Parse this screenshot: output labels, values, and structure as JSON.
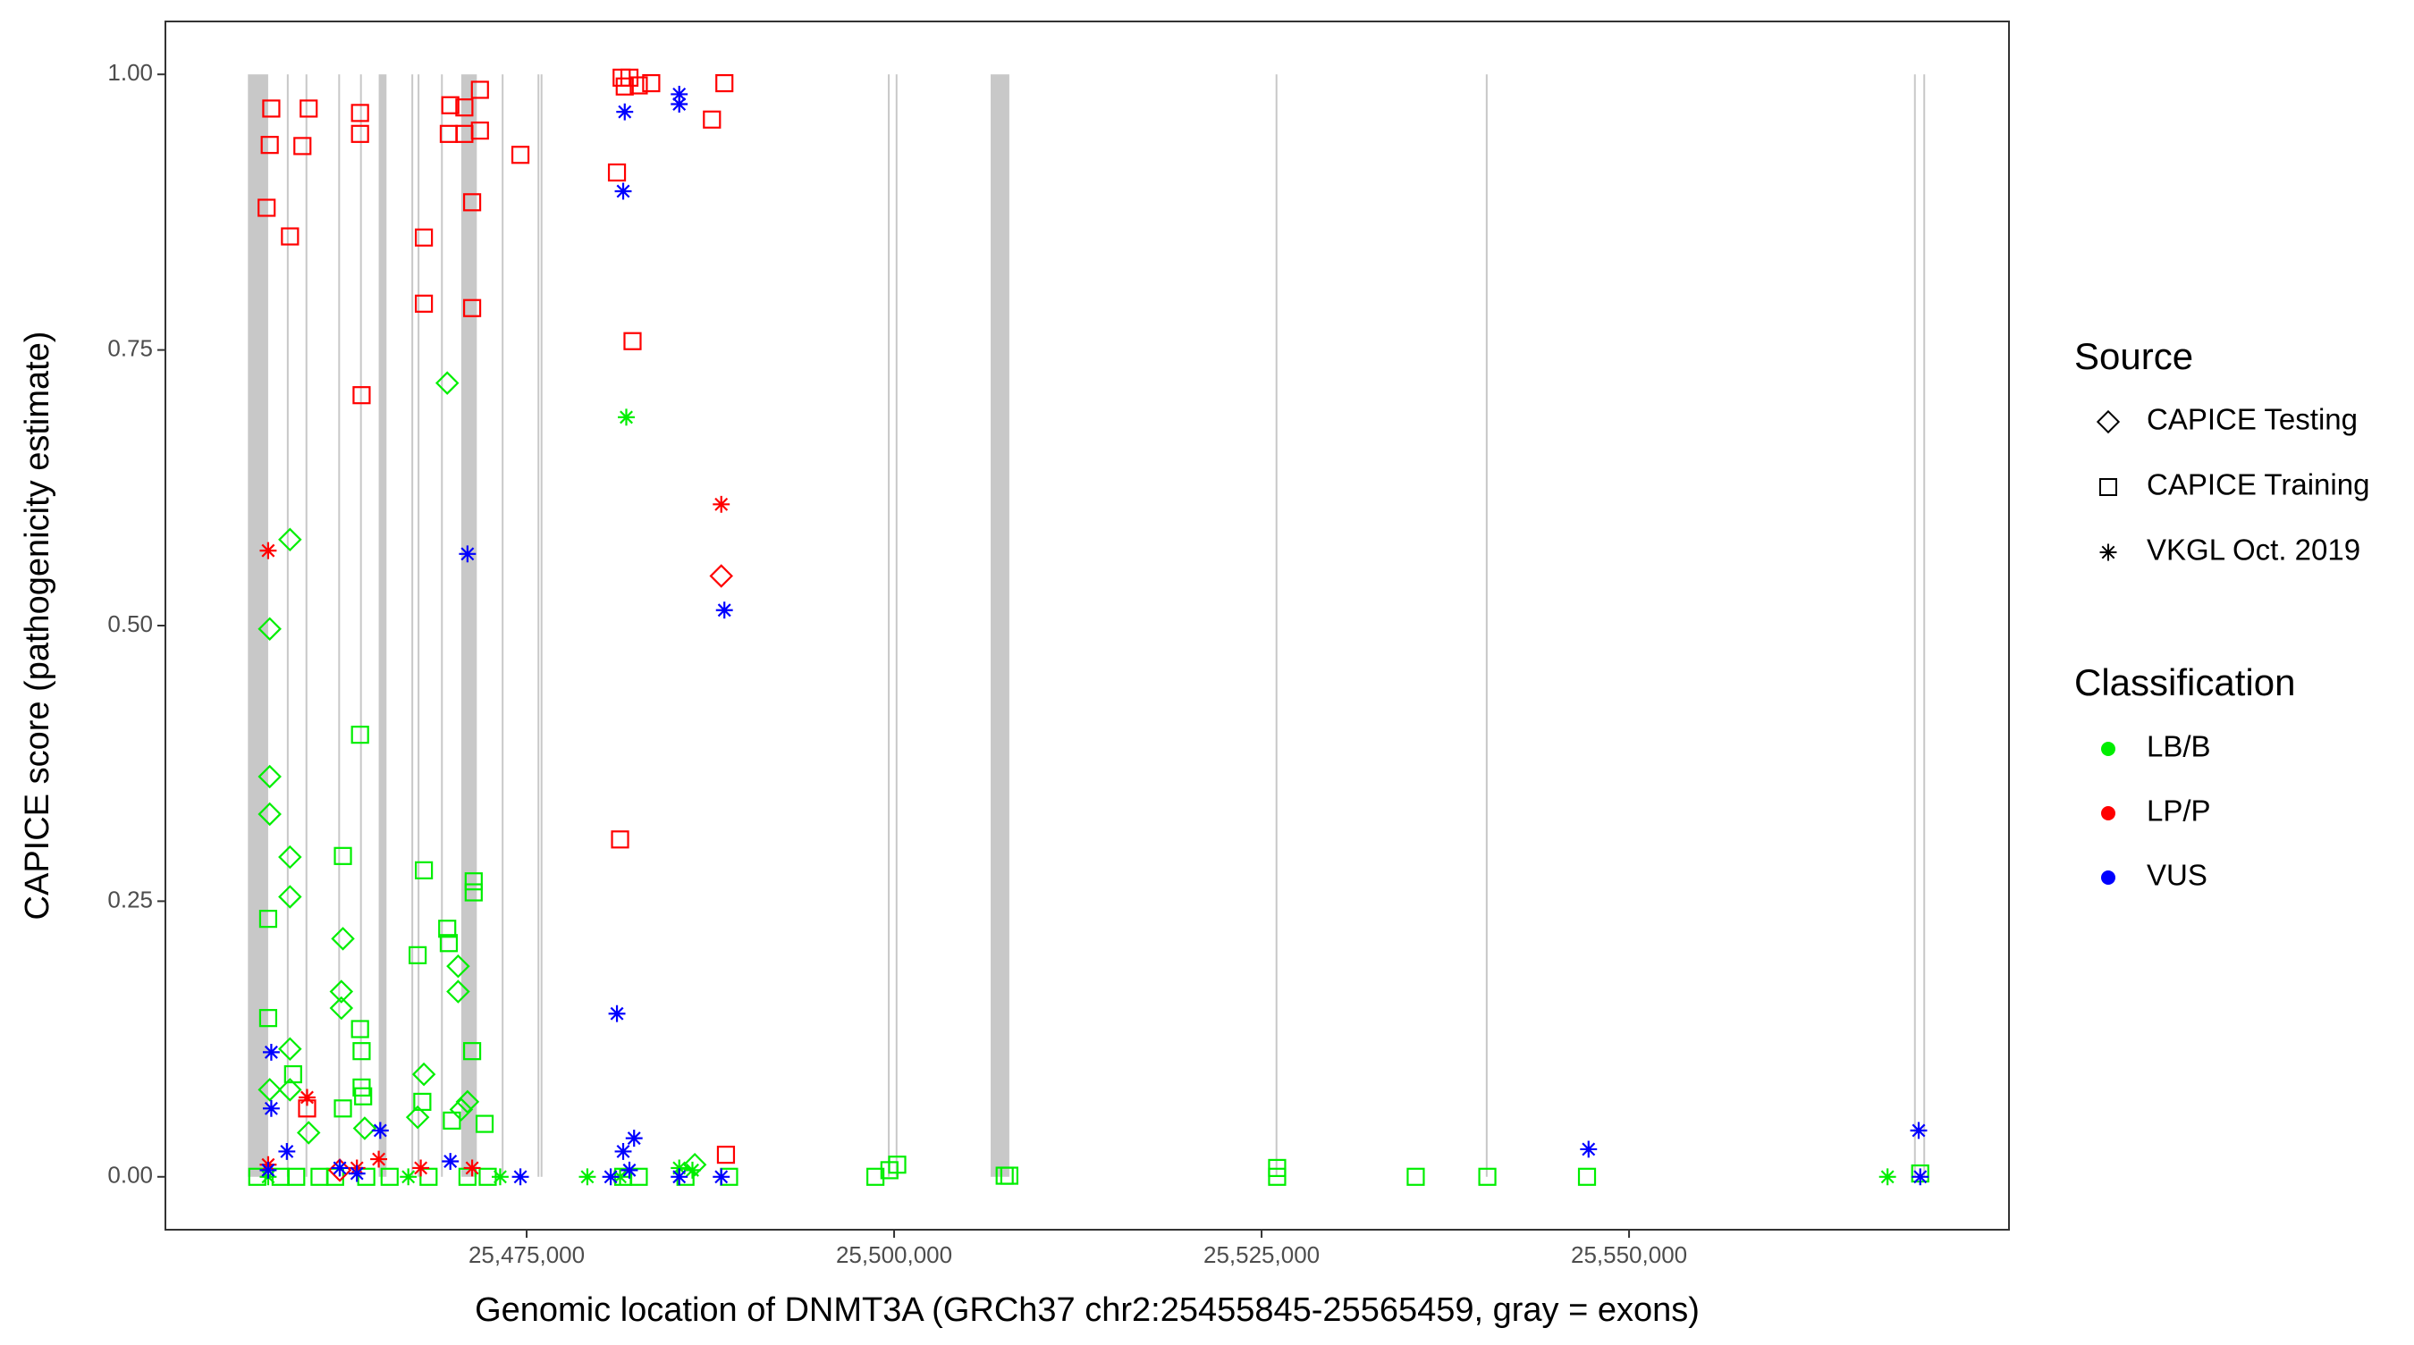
{
  "chart_data": {
    "type": "scatter",
    "x_label": "Genomic location of DNMT3A (GRCh37 chr2:25455845-25565459, gray = exons)",
    "y_label": "CAPICE score (pathogenicity estimate)",
    "xlim": [
      25450424,
      25575847
    ],
    "ylim": [
      -0.048,
      1.048
    ],
    "xticks": [
      {
        "value": 25475000,
        "label": "25,475,000"
      },
      {
        "value": 25500000,
        "label": "25,500,000"
      },
      {
        "value": 25525000,
        "label": "25,525,000"
      },
      {
        "value": 25550000,
        "label": "25,550,000"
      }
    ],
    "yticks": [
      {
        "value": 0,
        "label": "0.00"
      },
      {
        "value": 0.25,
        "label": "0.25"
      },
      {
        "value": 0.5,
        "label": "0.50"
      },
      {
        "value": 0.75,
        "label": "0.75"
      },
      {
        "value": 1,
        "label": "1.00"
      }
    ],
    "grid": false,
    "exon_color": "#c8c8c8",
    "exons": [
      [
        25456038,
        25457415
      ],
      [
        25458687,
        25458793
      ],
      [
        25459958,
        25460064
      ],
      [
        25462183,
        25462288
      ],
      [
        25463666,
        25463771
      ],
      [
        25464937,
        25465466
      ],
      [
        25467161,
        25467267
      ],
      [
        25467585,
        25467691
      ],
      [
        25469174,
        25469280
      ],
      [
        25470551,
        25471610
      ],
      [
        25473305,
        25473411
      ],
      [
        25475742,
        25475847
      ],
      [
        25475953,
        25476059
      ],
      [
        25499576,
        25499682
      ],
      [
        25500106,
        25500212
      ],
      [
        25506568,
        25507839
      ],
      [
        25525953,
        25526059
      ],
      [
        25540254,
        25540360
      ],
      [
        25569385,
        25569491
      ],
      [
        25570021,
        25570127
      ]
    ],
    "legend": {
      "source_title": "Source",
      "sources": [
        {
          "name": "CAPICE Testing",
          "shape": "diamond"
        },
        {
          "name": "CAPICE Training",
          "shape": "square"
        },
        {
          "name": "VKGL Oct. 2019",
          "shape": "star"
        }
      ],
      "classification_title": "Classification",
      "classes": [
        {
          "name": "LB/B",
          "color": "#00ee00"
        },
        {
          "name": "LP/P",
          "color": "#ff0000"
        },
        {
          "name": "VUS",
          "color": "#0000ff"
        }
      ]
    },
    "series": [
      {
        "shape": "square",
        "color": "#00ee00",
        "x": [
          25457415,
          25457415,
          25462500,
          25463666,
          25468009,
          25467585,
          25469597,
          25469703,
          25471398,
          25471398,
          25463666,
          25463771,
          25471292,
          25459111,
          25463771,
          25463877,
          25462500,
          25467903,
          25472140,
          25469915,
          25456674,
          25458263,
          25459322,
          25460911,
          25461971,
          25464089,
          25465678,
          25468326,
          25470975,
          25472352,
          25481568,
          25482627,
          25485805,
          25488771,
          25498728,
          25499682,
          25500211,
          25507521,
          25507838,
          25526058,
          25526058,
          25535486,
          25540359,
          25547138,
          25569807
        ],
        "y": [
          0.234,
          0.144,
          0.291,
          0.401,
          0.278,
          0.201,
          0.225,
          0.212,
          0.268,
          0.258,
          0.134,
          0.114,
          0.114,
          0.093,
          0.081,
          0.073,
          0.062,
          0.068,
          0.048,
          0.051,
          0,
          0,
          0,
          0,
          0,
          0,
          0,
          0,
          0,
          0,
          0,
          0,
          0,
          0,
          0,
          0.006,
          0.011,
          0.001,
          0.001,
          0.008,
          0,
          0,
          0,
          0,
          0.003
        ]
      },
      {
        "shape": "diamond",
        "color": "#00ee00",
        "x": [
          25469597,
          25458899,
          25457521,
          25457521,
          25457521,
          25458899,
          25458899,
          25462500,
          25462395,
          25462395,
          25470339,
          25470339,
          25458899,
          25468009,
          25457521,
          25458899,
          25470975,
          25470551,
          25463983,
          25460170,
          25467585,
          25486440
        ],
        "y": [
          0.72,
          0.578,
          0.497,
          0.363,
          0.329,
          0.29,
          0.254,
          0.216,
          0.168,
          0.153,
          0.191,
          0.168,
          0.116,
          0.093,
          0.079,
          0.079,
          0.068,
          0.061,
          0.044,
          0.04,
          0.054,
          0.011
        ]
      },
      {
        "shape": "star",
        "color": "#00ee00",
        "x": [
          25481780,
          25479131,
          25473199,
          25567585,
          25485381,
          25481356,
          25466949,
          25457415,
          25486280
        ],
        "y": [
          0.689,
          0,
          0,
          0,
          0.008,
          0,
          0,
          0,
          0.006
        ]
      },
      {
        "shape": "square",
        "color": "#ff0000",
        "x": [
          25457627,
          25457521,
          25457309,
          25458899,
          25460170,
          25459746,
          25463666,
          25463666,
          25463771,
          25468009,
          25468009,
          25469810,
          25469703,
          25470763,
          25470763,
          25471822,
          25471822,
          25471292,
          25471292,
          25474576,
          25481462,
          25481992,
          25481674,
          25482628,
          25483475,
          25481144,
          25487606,
          25488453,
          25482204,
          25481356,
          25488559,
          25460064
        ],
        "y": [
          0.969,
          0.936,
          0.879,
          0.853,
          0.969,
          0.935,
          0.965,
          0.946,
          0.709,
          0.852,
          0.792,
          0.972,
          0.946,
          0.97,
          0.946,
          0.986,
          0.949,
          0.884,
          0.788,
          0.927,
          0.997,
          0.997,
          0.989,
          0.99,
          0.992,
          0.911,
          0.959,
          0.992,
          0.758,
          0.306,
          0.02,
          0.062
        ]
      },
      {
        "shape": "diamond",
        "color": "#ff0000",
        "x": [
          25488241,
          25462288
        ],
        "y": [
          0.545,
          0.006
        ]
      },
      {
        "shape": "star",
        "color": "#ff0000",
        "x": [
          25457415,
          25488241,
          25460064,
          25457415,
          25464937,
          25467797,
          25471292,
          25463454
        ],
        "y": [
          0.568,
          0.61,
          0.072,
          0.011,
          0.016,
          0.008,
          0.008,
          0.008
        ]
      },
      {
        "shape": "star",
        "color": "#0000ff",
        "x": [
          25457627,
          25457627,
          25458687,
          25457415,
          25462288,
          25463454,
          25465042,
          25469810,
          25470975,
          25474576,
          25481674,
          25481568,
          25485381,
          25485381,
          25481144,
          25481568,
          25482310,
          25481992,
          25480720,
          25485381,
          25488241,
          25488453,
          25547245,
          25569703,
          25569809
        ],
        "y": [
          0.113,
          0.062,
          0.023,
          0.006,
          0.008,
          0.003,
          0.042,
          0.014,
          0.565,
          0,
          0.966,
          0.894,
          0.982,
          0.973,
          0.148,
          0.023,
          0.035,
          0.006,
          0,
          0,
          0,
          0.514,
          0.025,
          0.042,
          0
        ]
      }
    ]
  }
}
